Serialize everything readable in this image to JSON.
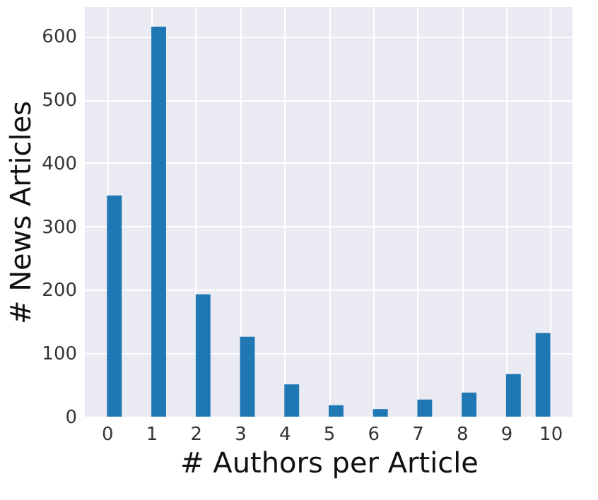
{
  "chart_data": {
    "type": "histogram",
    "xlabel": "# Authors per Article",
    "ylabel": "# News Articles",
    "color": "#1f77b4",
    "bins": [
      0,
      0.333,
      0.667,
      1,
      1.333,
      1.667,
      2,
      2.333,
      2.667,
      3,
      3.333,
      3.667,
      4,
      4.333,
      4.667,
      5,
      5.333,
      5.667,
      6,
      6.333,
      6.667,
      7,
      7.333,
      7.667,
      8,
      8.333,
      8.667,
      9,
      9.333,
      9.667,
      10
    ],
    "values": [
      349,
      0,
      0,
      615,
      0,
      0,
      193,
      0,
      0,
      126,
      0,
      0,
      51,
      0,
      0,
      18,
      0,
      0,
      12,
      0,
      0,
      27,
      0,
      0,
      38,
      0,
      0,
      67,
      0,
      132
    ],
    "xlim": [
      -0.5,
      10.5
    ],
    "xticks": [
      0,
      1,
      2,
      3,
      4,
      5,
      6,
      7,
      8,
      9,
      10
    ],
    "ylim": [
      0,
      646
    ],
    "yticks": [
      0,
      100,
      200,
      300,
      400,
      500,
      600
    ],
    "grid": true
  }
}
